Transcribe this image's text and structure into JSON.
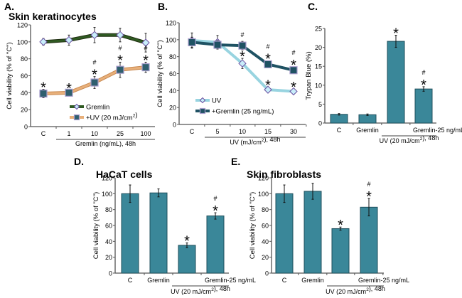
{
  "colors": {
    "bar_fill": "#3a8799",
    "bar_stroke": "#1f4f5c",
    "gremlin_line": "#2f5a22",
    "gremlin_line_edge": "#1f2d10",
    "uv_line_A": "#e8b07a",
    "uv_marker_A": "#2f5f6e",
    "uv_line_B": "#98d4e0",
    "grem_line_B": "#1f5263",
    "marker_diamond": "#c8eefa",
    "marker_square_edge": "#a89ccc",
    "axis": "#555555"
  },
  "chart_data": [
    {
      "id": "A",
      "panel_label": "A.",
      "type": "line",
      "title": "Skin keratinocytes",
      "ylabel": "Cell viability (% of \"C\")",
      "xlabel": "Gremlin (ng/mL), 48h",
      "categories": [
        "C",
        "1",
        "10",
        "25",
        "100"
      ],
      "ylim": [
        0,
        120
      ],
      "yticks": [
        0,
        20,
        40,
        60,
        80,
        100,
        120
      ],
      "legend_position": "bottom-right",
      "series": [
        {
          "name": "Gremlin",
          "marker": "diamond",
          "values": [
            100,
            102,
            108,
            108,
            99
          ],
          "errors": [
            4,
            6,
            9,
            8,
            11
          ],
          "annotations": [
            "",
            "",
            "",
            "",
            ""
          ]
        },
        {
          "name": "+UV (20 mJ/cm²)",
          "marker": "square",
          "values": [
            39,
            40,
            52,
            67,
            70
          ],
          "errors": [
            5,
            3,
            7,
            9,
            6
          ],
          "annotations": [
            "*",
            "*",
            "*#",
            "*#",
            "*#"
          ]
        }
      ]
    },
    {
      "id": "B",
      "panel_label": "B.",
      "type": "line",
      "title": "",
      "ylabel": "Cell viability (% of \"C\")",
      "xlabel": "UV (mJ/cm²), 48h",
      "categories": [
        "C",
        "5",
        "10",
        "15",
        "30"
      ],
      "ylim": [
        0,
        120
      ],
      "yticks": [
        0,
        20,
        40,
        60,
        80,
        100,
        120
      ],
      "legend_position": "bottom-left",
      "series": [
        {
          "name": "UV",
          "marker": "diamond",
          "values": [
            99,
            97,
            72,
            41,
            39
          ],
          "errors": [
            9,
            8,
            6,
            3,
            3
          ],
          "annotations": [
            "",
            "",
            "*",
            "*",
            "*"
          ]
        },
        {
          "name": "+Gremlin (25 ng/mL)",
          "marker": "square",
          "values": [
            97,
            94,
            93,
            71,
            64
          ],
          "errors": [
            6,
            5,
            5,
            4,
            4
          ],
          "annotations": [
            "",
            "",
            "#",
            "*#",
            "*#"
          ]
        }
      ]
    },
    {
      "id": "C",
      "panel_label": "C.",
      "type": "bar",
      "title": "",
      "ylabel": "Trypan Blue (%)",
      "xlabel": "UV (20 mJ/cm²), 48h",
      "categories": [
        "C",
        "Gremlin",
        "",
        "Gremlin-25 ng/mL"
      ],
      "ylim": [
        0,
        25
      ],
      "yticks": [
        0,
        5,
        10,
        15,
        20,
        25
      ],
      "values": [
        2.3,
        2.2,
        21.6,
        9.0
      ],
      "errors": [
        0.2,
        0.2,
        1.6,
        0.6
      ],
      "annotations": [
        "",
        "",
        "*",
        "*#"
      ]
    },
    {
      "id": "D",
      "panel_label": "D.",
      "type": "bar",
      "title": "HaCaT cells",
      "ylabel": "Cell viability (% of \"C\")",
      "xlabel": "UV (20 mJ/cm²), 48h",
      "categories": [
        "C",
        "Gremlin",
        "",
        "Gremlin-25 ng/mL"
      ],
      "ylim": [
        0,
        120
      ],
      "yticks": [
        0,
        20,
        40,
        60,
        80,
        100,
        120
      ],
      "values": [
        100,
        101,
        35,
        72
      ],
      "errors": [
        11,
        5,
        3,
        4
      ],
      "annotations": [
        "",
        "",
        "*",
        "*#"
      ]
    },
    {
      "id": "E",
      "panel_label": "E.",
      "type": "bar",
      "title": "Skin fibroblasts",
      "ylabel": "Cell viability (% of \"C\")",
      "xlabel": "UV (20 mJ/cm²), 48h",
      "categories": [
        "C",
        "Gremlin",
        "",
        "Gremlin-25 ng/mL"
      ],
      "ylim": [
        0,
        120
      ],
      "yticks": [
        0,
        20,
        40,
        60,
        80,
        100,
        120
      ],
      "values": [
        100,
        103,
        56,
        83
      ],
      "errors": [
        11,
        10,
        2,
        11
      ],
      "annotations": [
        "",
        "",
        "*",
        "*#"
      ]
    }
  ]
}
